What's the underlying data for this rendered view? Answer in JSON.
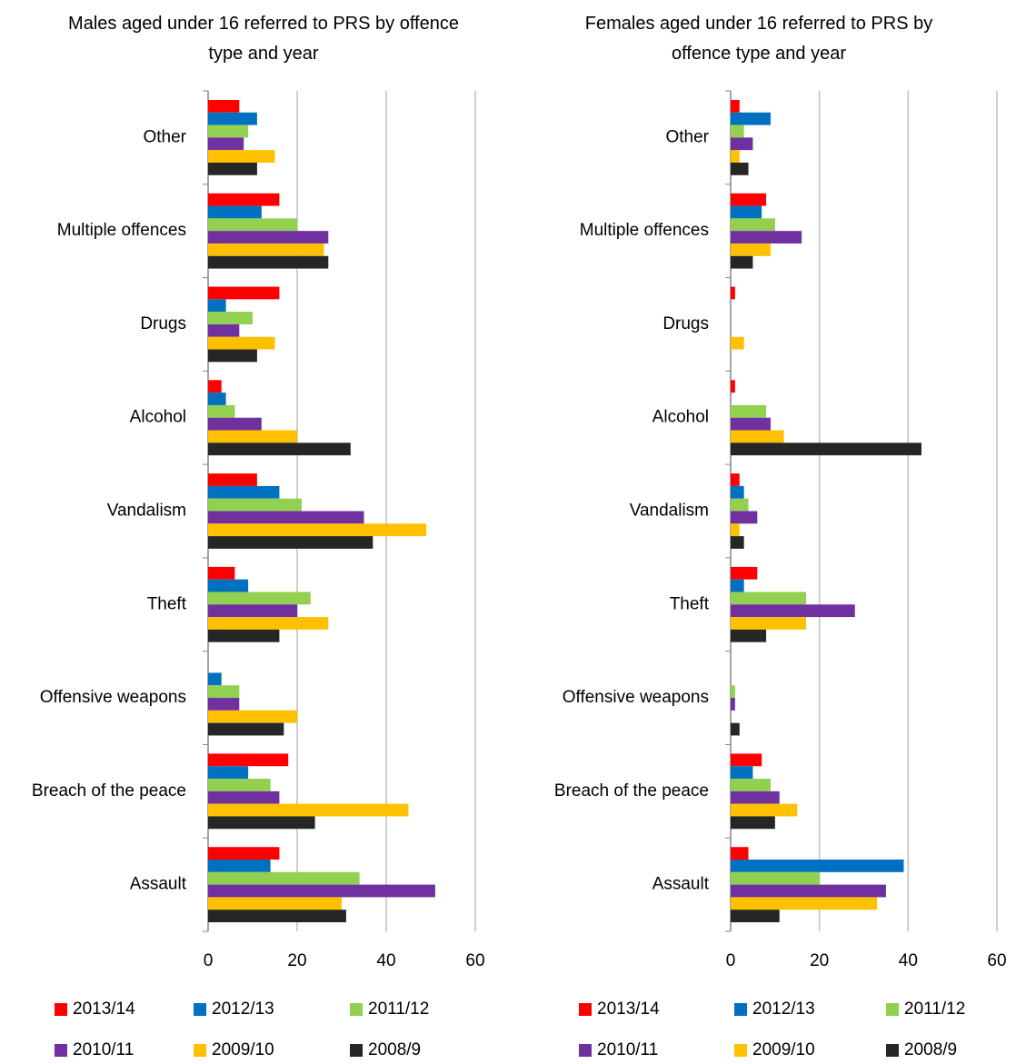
{
  "chart_data": [
    {
      "type": "bar",
      "orientation": "horizontal",
      "title": "Males aged under 16 referred to PRS by offence type and year",
      "categories": [
        "Other",
        "Multiple offences",
        "Drugs",
        "Alcohol",
        "Vandalism",
        "Theft",
        "Offensive weapons",
        "Breach of the peace",
        "Assault"
      ],
      "series": [
        {
          "name": "2013/14",
          "color": "#ff0000",
          "values": [
            7,
            16,
            16,
            3,
            11,
            6,
            0,
            18,
            16
          ]
        },
        {
          "name": "2012/13",
          "color": "#0070c0",
          "values": [
            11,
            12,
            4,
            4,
            16,
            9,
            3,
            9,
            14
          ]
        },
        {
          "name": "2011/12",
          "color": "#92d050",
          "values": [
            9,
            20,
            10,
            6,
            21,
            23,
            7,
            14,
            34
          ]
        },
        {
          "name": "2010/11",
          "color": "#7030a0",
          "values": [
            8,
            27,
            7,
            12,
            35,
            20,
            7,
            16,
            51
          ]
        },
        {
          "name": "2009/10",
          "color": "#ffc000",
          "values": [
            15,
            26,
            15,
            20,
            49,
            27,
            20,
            45,
            30
          ]
        },
        {
          "name": "2008/9",
          "color": "#262626",
          "values": [
            11,
            27,
            11,
            32,
            37,
            16,
            17,
            24,
            31
          ]
        }
      ],
      "xlim": [
        0,
        60
      ],
      "xticks": [
        0,
        20,
        40,
        60
      ],
      "grid": true
    },
    {
      "type": "bar",
      "orientation": "horizontal",
      "title": "Females aged under 16 referred to PRS by offence type and year",
      "categories": [
        "Other",
        "Multiple offences",
        "Drugs",
        "Alcohol",
        "Vandalism",
        "Theft",
        "Offensive weapons",
        "Breach of the peace",
        "Assault"
      ],
      "series": [
        {
          "name": "2013/14",
          "color": "#ff0000",
          "values": [
            2,
            8,
            1,
            1,
            2,
            6,
            0,
            7,
            4
          ]
        },
        {
          "name": "2012/13",
          "color": "#0070c0",
          "values": [
            9,
            7,
            0,
            0,
            3,
            3,
            0,
            5,
            39
          ]
        },
        {
          "name": "2011/12",
          "color": "#92d050",
          "values": [
            3,
            10,
            0,
            8,
            4,
            17,
            1,
            9,
            20
          ]
        },
        {
          "name": "2010/11",
          "color": "#7030a0",
          "values": [
            5,
            16,
            0,
            9,
            6,
            28,
            1,
            11,
            35
          ]
        },
        {
          "name": "2009/10",
          "color": "#ffc000",
          "values": [
            2,
            9,
            3,
            12,
            2,
            17,
            0,
            15,
            33
          ]
        },
        {
          "name": "2008/9",
          "color": "#262626",
          "values": [
            4,
            5,
            0,
            43,
            3,
            8,
            2,
            10,
            11
          ]
        }
      ],
      "xlim": [
        0,
        60
      ],
      "xticks": [
        0,
        20,
        40,
        60
      ],
      "grid": true
    }
  ]
}
